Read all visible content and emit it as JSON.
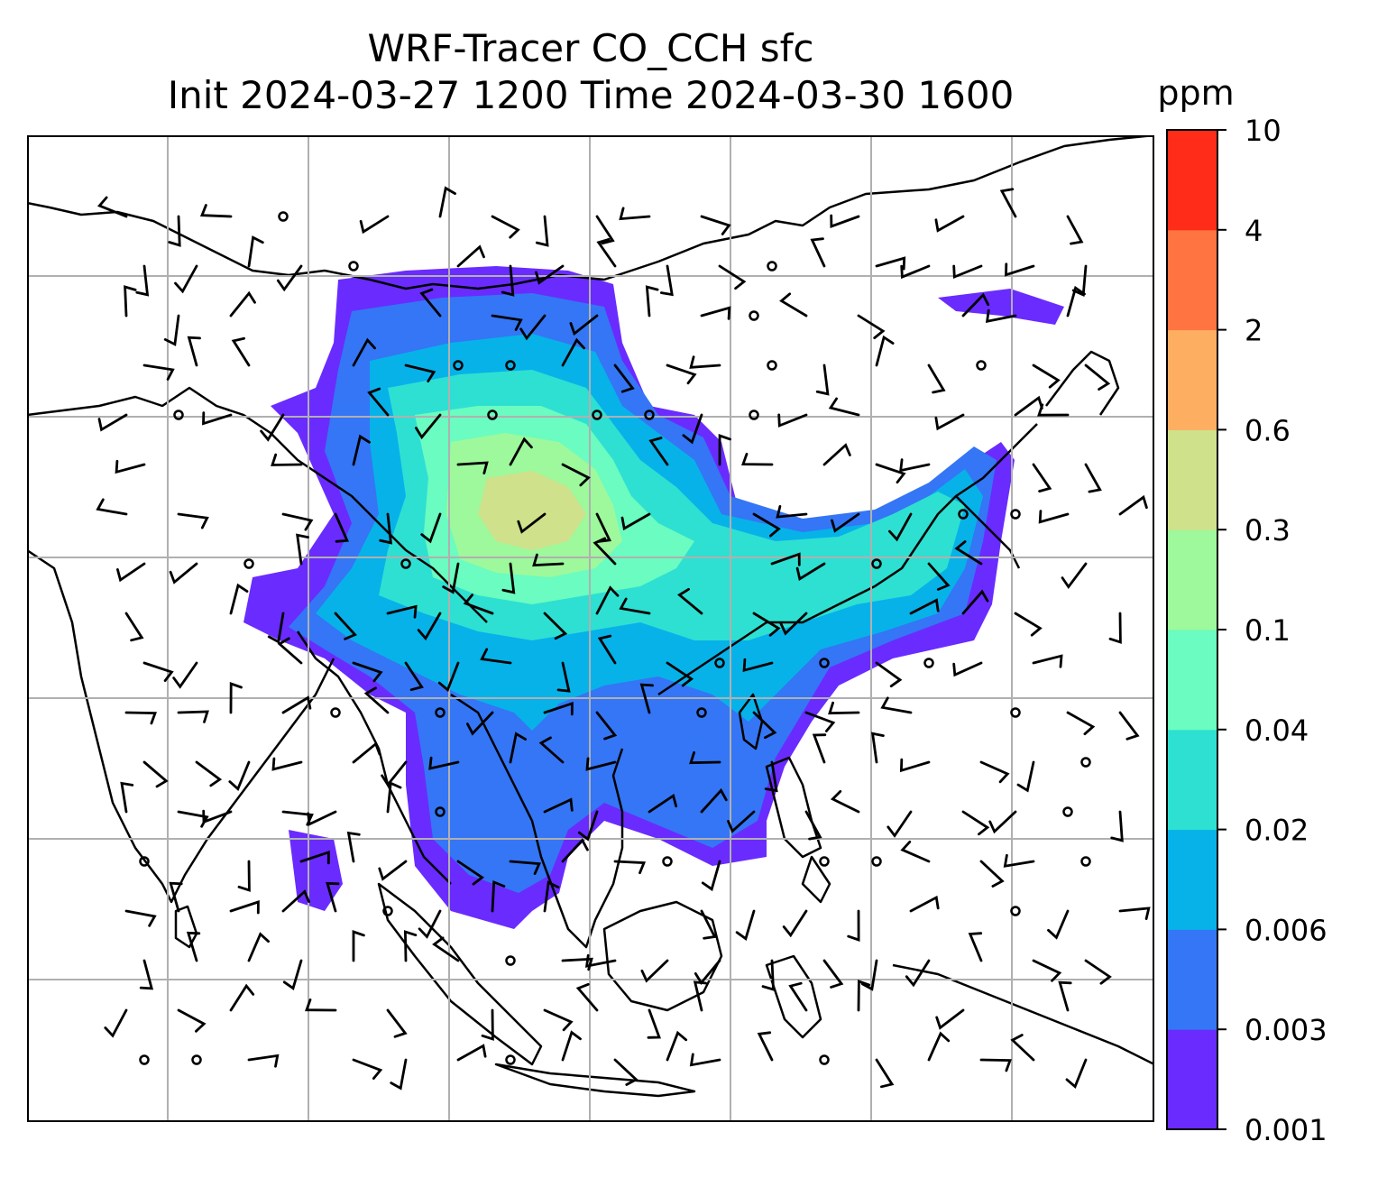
{
  "title": {
    "line1": "WRF-Tracer CO_CCH sfc",
    "line2": "Init 2024-03-27 1200 Time 2024-03-30 1600"
  },
  "colorbar": {
    "unit": "ppm",
    "levels": [
      "0.001",
      "0.003",
      "0.006",
      "0.02",
      "0.04",
      "0.1",
      "0.3",
      "0.6",
      "2",
      "4",
      "10"
    ],
    "colors": [
      "#6a2bff",
      "#3476f5",
      "#07b2e9",
      "#2ee0d2",
      "#6afcc0",
      "#9ef89c",
      "#cfe18a",
      "#fdae61",
      "#ff7441",
      "#ff2c1a"
    ]
  },
  "map": {
    "gridline_color": "#b0b0b0",
    "coastline_color": "#000000",
    "wind_barb_color": "#000000"
  }
}
